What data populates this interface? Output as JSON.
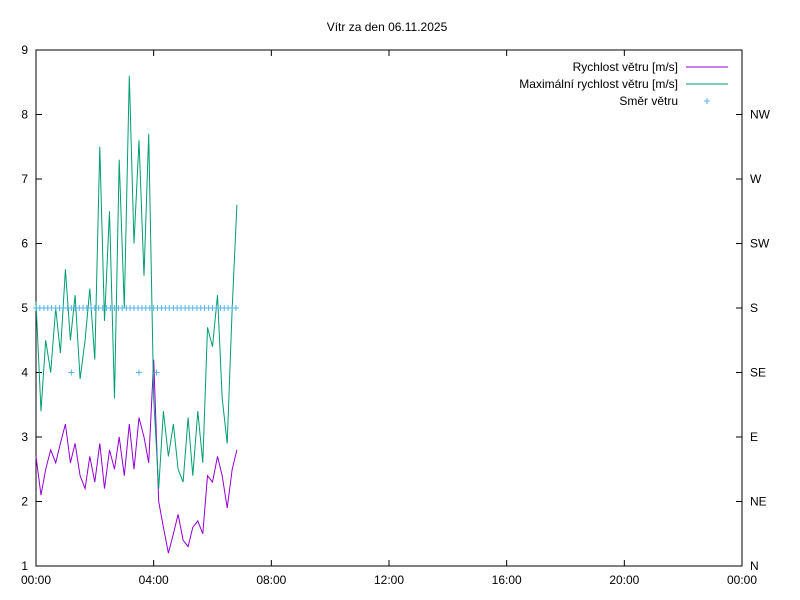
{
  "chart_data": {
    "type": "line",
    "title": "Vítr za den 06.11.2025",
    "x_ticks": [
      "00:00",
      "04:00",
      "08:00",
      "12:00",
      "16:00",
      "20:00",
      "00:00"
    ],
    "x_range_hours": [
      0,
      24
    ],
    "ylim": [
      1,
      9
    ],
    "y_ticks": [
      "1",
      "2",
      "3",
      "4",
      "5",
      "6",
      "7",
      "8",
      "9"
    ],
    "y2_ticks": [
      "N",
      "NE",
      "E",
      "SE",
      "S",
      "SW",
      "W",
      "NW"
    ],
    "grid": false,
    "legend_position": "top-right",
    "series": [
      {
        "name": "Rychlost větru [m/s]",
        "color": "#9400d3",
        "style": "line",
        "x_hours": [
          0.0,
          0.17,
          0.33,
          0.5,
          0.67,
          0.83,
          1.0,
          1.17,
          1.33,
          1.5,
          1.67,
          1.83,
          2.0,
          2.17,
          2.33,
          2.5,
          2.67,
          2.83,
          3.0,
          3.17,
          3.33,
          3.5,
          3.67,
          3.83,
          4.0,
          4.17,
          4.33,
          4.5,
          4.67,
          4.83,
          5.0,
          5.17,
          5.33,
          5.5,
          5.67,
          5.83,
          6.0,
          6.17,
          6.33,
          6.5,
          6.67,
          6.83
        ],
        "y": [
          2.7,
          2.1,
          2.5,
          2.8,
          2.6,
          2.9,
          3.2,
          2.6,
          2.9,
          2.4,
          2.2,
          2.7,
          2.3,
          2.9,
          2.2,
          2.8,
          2.5,
          3.0,
          2.4,
          3.2,
          2.5,
          3.3,
          3.0,
          2.6,
          4.2,
          2.0,
          1.6,
          1.2,
          1.5,
          1.8,
          1.4,
          1.3,
          1.6,
          1.7,
          1.5,
          2.4,
          2.3,
          2.7,
          2.4,
          1.9,
          2.5,
          2.8
        ]
      },
      {
        "name": "Maximální rychlost větru [m/s]",
        "color": "#009e73",
        "style": "line",
        "x_hours": [
          0.0,
          0.17,
          0.33,
          0.5,
          0.67,
          0.83,
          1.0,
          1.17,
          1.33,
          1.5,
          1.67,
          1.83,
          2.0,
          2.17,
          2.33,
          2.5,
          2.67,
          2.83,
          3.0,
          3.17,
          3.33,
          3.5,
          3.67,
          3.83,
          4.0,
          4.17,
          4.33,
          4.5,
          4.67,
          4.83,
          5.0,
          5.17,
          5.33,
          5.5,
          5.67,
          5.83,
          6.0,
          6.17,
          6.33,
          6.5,
          6.67,
          6.83
        ],
        "y": [
          5.1,
          3.4,
          4.5,
          4.0,
          5.0,
          4.3,
          5.6,
          4.5,
          5.2,
          3.9,
          4.5,
          5.3,
          4.2,
          7.5,
          4.8,
          6.5,
          3.6,
          7.3,
          5.0,
          8.6,
          6.0,
          7.6,
          5.5,
          7.7,
          3.6,
          2.2,
          3.4,
          2.7,
          3.2,
          2.5,
          2.3,
          3.3,
          2.4,
          3.4,
          2.6,
          4.7,
          4.4,
          5.2,
          3.6,
          2.9,
          5.0,
          6.6
        ]
      },
      {
        "name": "Směr větru",
        "color": "#56b4e9",
        "style": "points",
        "x_hours": [
          0.0,
          0.13,
          0.27,
          0.4,
          0.53,
          0.67,
          0.8,
          0.93,
          1.07,
          1.2,
          1.33,
          1.47,
          1.6,
          1.73,
          1.87,
          2.0,
          2.13,
          2.27,
          2.4,
          2.53,
          2.67,
          2.8,
          2.93,
          3.07,
          3.2,
          3.33,
          3.47,
          3.6,
          3.73,
          3.87,
          4.0,
          4.13,
          4.27,
          4.4,
          4.53,
          4.67,
          4.8,
          4.93,
          5.07,
          5.2,
          5.33,
          5.47,
          5.6,
          5.73,
          5.87,
          6.0,
          6.13,
          6.27,
          6.4,
          6.53,
          6.67,
          6.8,
          1.2,
          3.5,
          4.1
        ],
        "y": [
          5,
          5,
          5,
          5,
          5,
          5,
          5,
          5,
          5,
          5,
          5,
          5,
          5,
          5,
          5,
          5,
          5,
          5,
          5,
          5,
          5,
          5,
          5,
          5,
          5,
          5,
          5,
          5,
          5,
          5,
          5,
          5,
          5,
          5,
          5,
          5,
          5,
          5,
          5,
          5,
          5,
          5,
          5,
          5,
          5,
          5,
          5,
          5,
          5,
          5,
          5,
          5,
          4,
          4,
          4
        ]
      }
    ]
  }
}
